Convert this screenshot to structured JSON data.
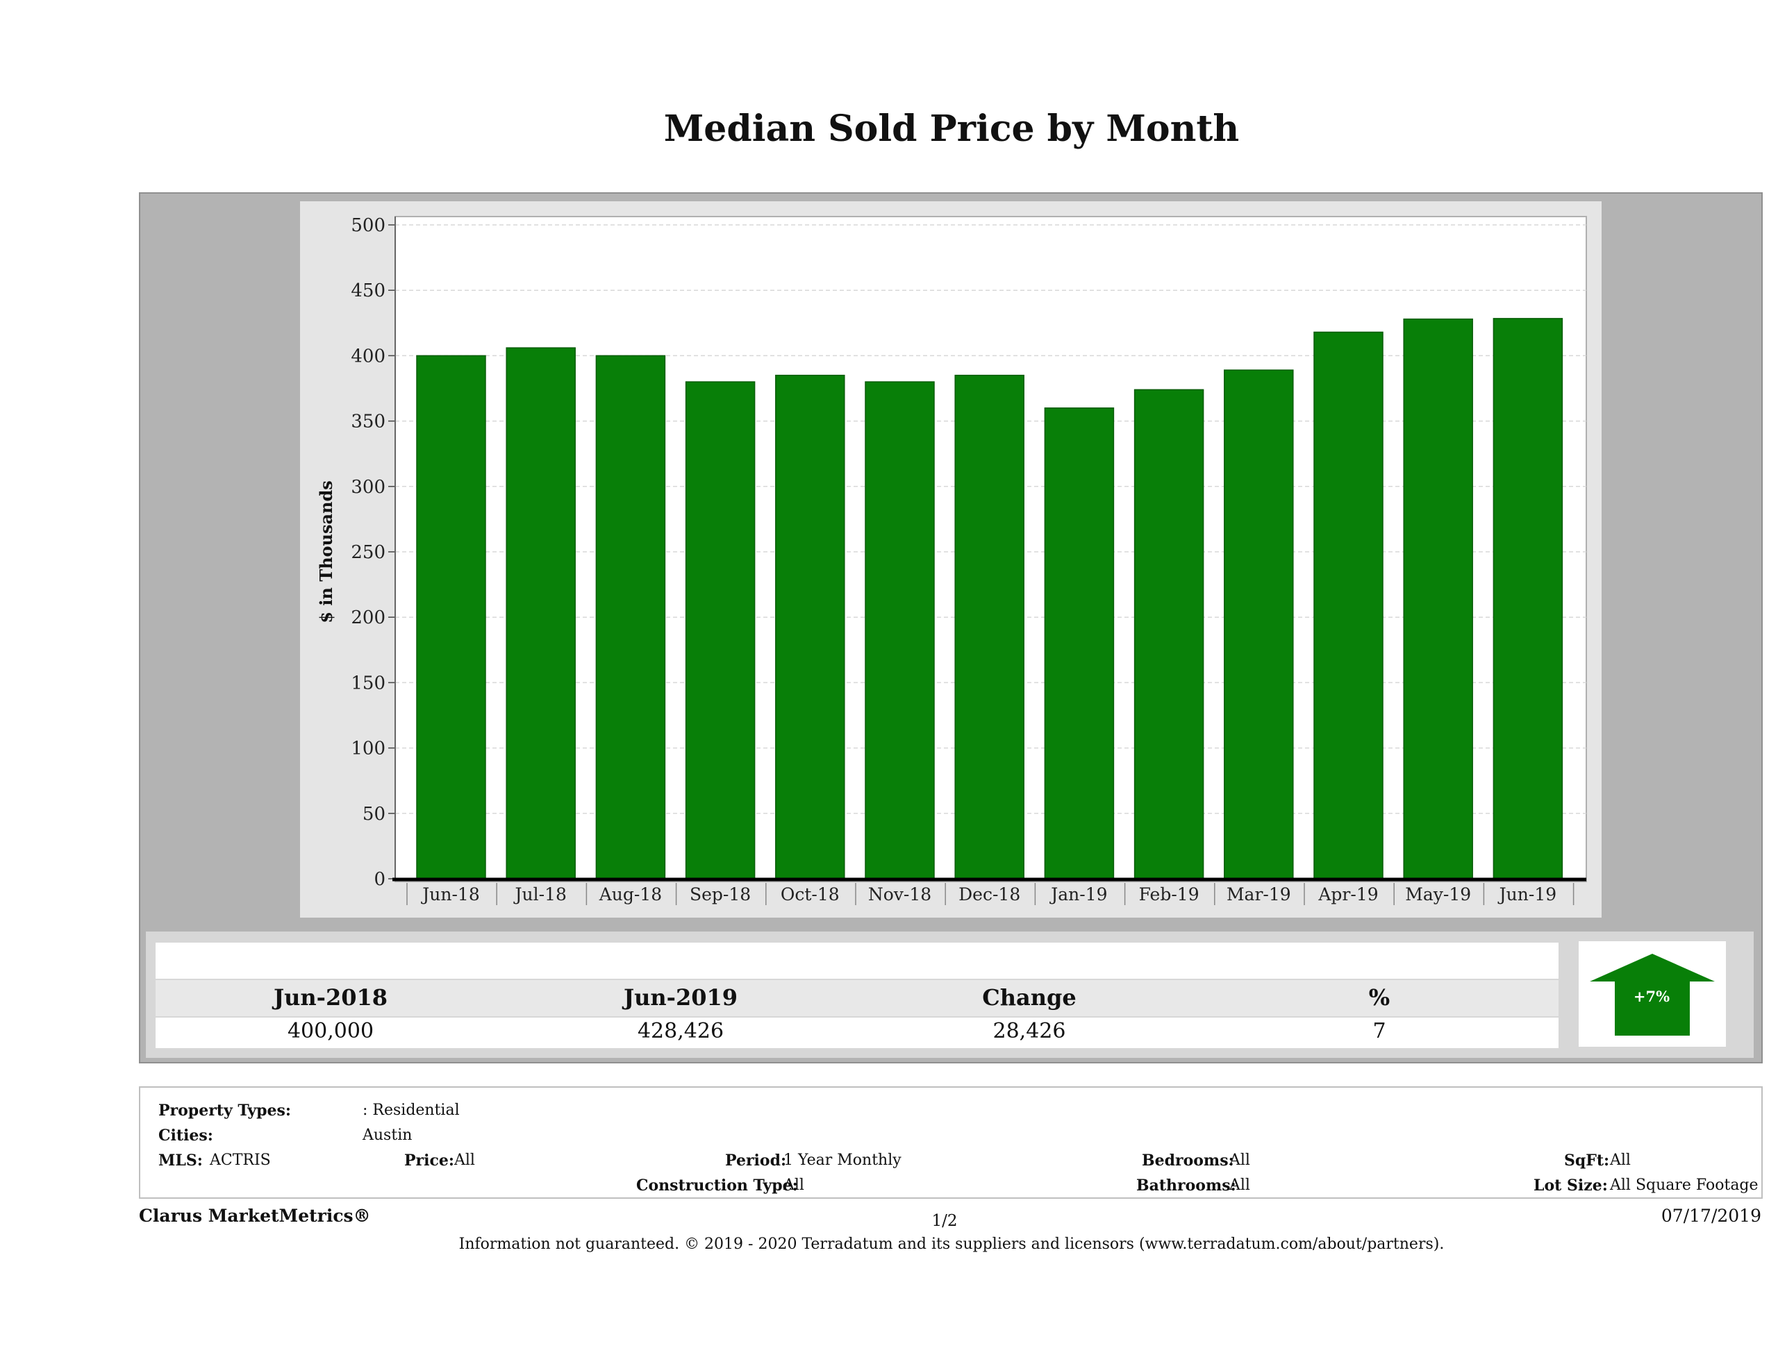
{
  "title": "Median Sold Price by Month",
  "chart_data": {
    "type": "bar",
    "title": "Median Sold Price by Month",
    "ylabel": "$ in Thousands",
    "xlabel": "",
    "categories": [
      "Jun-18",
      "Jul-18",
      "Aug-18",
      "Sep-18",
      "Oct-18",
      "Nov-18",
      "Dec-18",
      "Jan-19",
      "Feb-19",
      "Mar-19",
      "Apr-19",
      "May-19",
      "Jun-19"
    ],
    "values": [
      400,
      406,
      400,
      380,
      385,
      380,
      385,
      360,
      374,
      389,
      418,
      428,
      428.426
    ],
    "ylim": [
      0,
      500
    ],
    "yticks": [
      0,
      50,
      100,
      150,
      200,
      250,
      300,
      350,
      400,
      450,
      500
    ],
    "grid": true,
    "bar_color": "#087f08"
  },
  "summary": {
    "headers": [
      "Jun-2018",
      "Jun-2019",
      "Change",
      "%"
    ],
    "values": [
      "400,000",
      "428,426",
      "28,426",
      "7"
    ],
    "indicator": {
      "label": "+7%",
      "direction": "up",
      "color": "#087f08"
    }
  },
  "criteria": {
    "property_types_label": "Property Types:",
    "property_types_value": ": Residential",
    "cities_label": "Cities:",
    "cities_value": "Austin",
    "mls_label": "MLS:",
    "mls_value": "ACTRIS",
    "price_label": "Price:",
    "price_value": "All",
    "period_label": "Period:",
    "period_value": "1 Year Monthly",
    "construction_label": "Construction Type:",
    "construction_value": "All",
    "bedrooms_label": "Bedrooms:",
    "bedrooms_value": "All",
    "bathrooms_label": "Bathrooms:",
    "bathrooms_value": "All",
    "sqft_label": "SqFt:",
    "sqft_value": "All",
    "lotsize_label": "Lot Size:",
    "lotsize_value": "All Square Footage"
  },
  "footer": {
    "brand": "Clarus MarketMetrics®",
    "page": "1/2",
    "date": "07/17/2019",
    "note": "Information not guaranteed. © 2019 - 2020 Terradatum and its suppliers and licensors (www.terradatum.com/about/partners)."
  }
}
